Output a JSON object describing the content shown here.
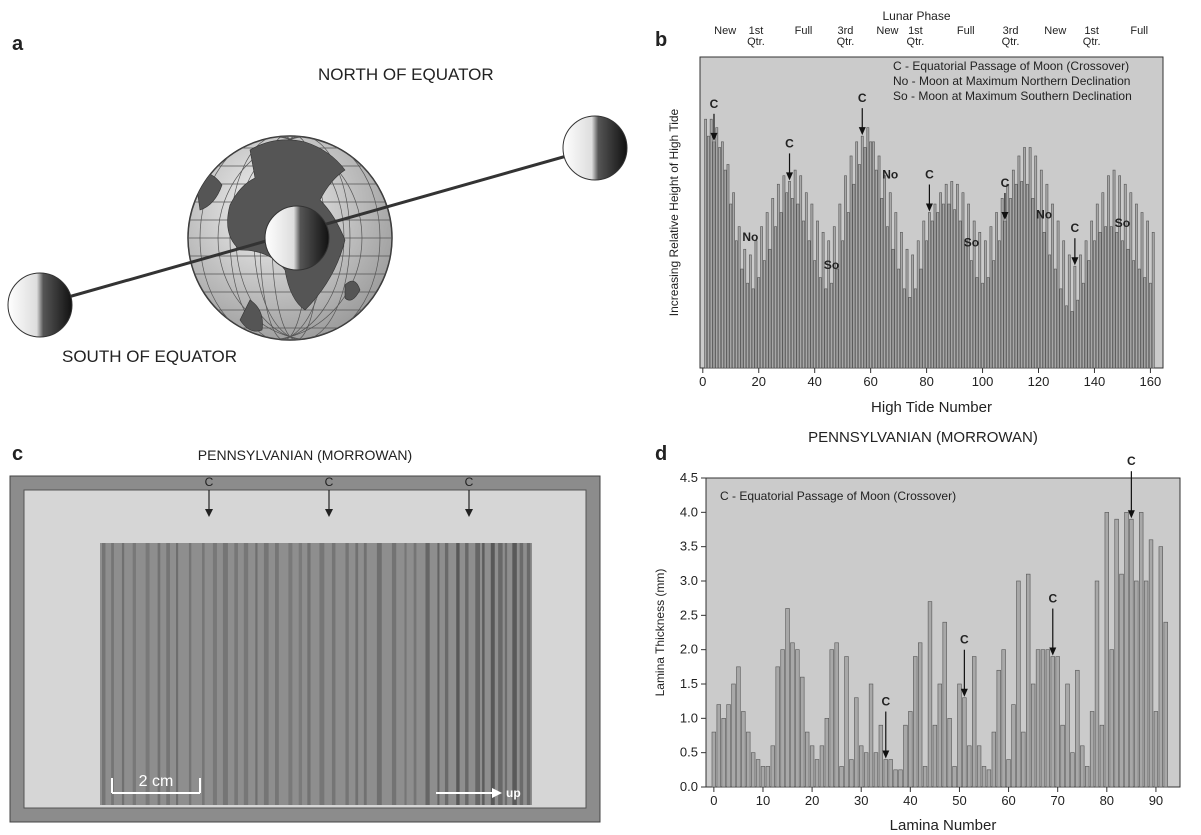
{
  "panels": {
    "a": {
      "label": "a",
      "north": "NORTH OF EQUATOR",
      "south": "SOUTH OF EQUATOR"
    },
    "c": {
      "label": "c",
      "title": "PENNSYLVANIAN (MORROWAN)",
      "markers": [
        "C",
        "C",
        "C"
      ],
      "scale_bar": "2 cm",
      "direction": "up"
    }
  },
  "chart_data": [
    {
      "type": "bar",
      "panel_label": "b",
      "top_axis_title": "Lunar Phase",
      "phases": [
        {
          "label": "New",
          "x": 8
        },
        {
          "label": "1st Qtr.",
          "x": 19
        },
        {
          "label": "Full",
          "x": 36
        },
        {
          "label": "3rd Qtr.",
          "x": 51
        },
        {
          "label": "New",
          "x": 66
        },
        {
          "label": "1st Qtr.",
          "x": 76
        },
        {
          "label": "Full",
          "x": 94
        },
        {
          "label": "3rd Qtr.",
          "x": 110
        },
        {
          "label": "New",
          "x": 126
        },
        {
          "label": "1st Qtr.",
          "x": 139
        },
        {
          "label": "Full",
          "x": 156
        }
      ],
      "notes": [
        "C - Equatorial Passage of Moon (Crossover)",
        "No - Moon at Maximum Northern Declination",
        "So - Moon at Maximum Southern Declination"
      ],
      "xlabel": "High Tide Number",
      "ylabel": "Increasing Relative Height of High Tide",
      "x": [
        1,
        2,
        3,
        4,
        5,
        6,
        7,
        8,
        9,
        10,
        11,
        12,
        13,
        14,
        15,
        16,
        17,
        18,
        19,
        20,
        21,
        22,
        23,
        24,
        25,
        26,
        27,
        28,
        29,
        30,
        31,
        32,
        33,
        34,
        35,
        36,
        37,
        38,
        39,
        40,
        41,
        42,
        43,
        44,
        45,
        46,
        47,
        48,
        49,
        50,
        51,
        52,
        53,
        54,
        55,
        56,
        57,
        58,
        59,
        60,
        61,
        62,
        63,
        64,
        65,
        66,
        67,
        68,
        69,
        70,
        71,
        72,
        73,
        74,
        75,
        76,
        77,
        78,
        79,
        80,
        81,
        82,
        83,
        84,
        85,
        86,
        87,
        88,
        89,
        90,
        91,
        92,
        93,
        94,
        95,
        96,
        97,
        98,
        99,
        100,
        101,
        102,
        103,
        104,
        105,
        106,
        107,
        108,
        109,
        110,
        111,
        112,
        113,
        114,
        115,
        116,
        117,
        118,
        119,
        120,
        121,
        122,
        123,
        124,
        125,
        126,
        127,
        128,
        129,
        130,
        131,
        132,
        133,
        134,
        135,
        136,
        137,
        138,
        139,
        140,
        141,
        142,
        143,
        144,
        145,
        146,
        147,
        148,
        149,
        150,
        151,
        152,
        153,
        154,
        155,
        156,
        157,
        158,
        159,
        160,
        161
      ],
      "values": [
        88,
        82,
        88,
        80,
        85,
        78,
        80,
        70,
        72,
        58,
        62,
        45,
        50,
        35,
        42,
        30,
        40,
        28,
        45,
        32,
        50,
        38,
        55,
        42,
        60,
        50,
        65,
        55,
        68,
        62,
        66,
        60,
        70,
        58,
        68,
        52,
        62,
        45,
        58,
        38,
        52,
        32,
        48,
        28,
        45,
        30,
        50,
        35,
        58,
        45,
        68,
        55,
        75,
        65,
        80,
        72,
        82,
        78,
        85,
        80,
        80,
        70,
        75,
        60,
        68,
        50,
        62,
        42,
        55,
        35,
        48,
        28,
        42,
        25,
        40,
        28,
        45,
        35,
        52,
        45,
        55,
        52,
        58,
        55,
        62,
        58,
        65,
        58,
        66,
        56,
        65,
        52,
        62,
        45,
        58,
        38,
        52,
        32,
        48,
        30,
        45,
        32,
        50,
        38,
        55,
        45,
        60,
        52,
        65,
        60,
        70,
        65,
        75,
        66,
        78,
        65,
        78,
        60,
        75,
        55,
        70,
        48,
        65,
        40,
        58,
        35,
        52,
        28,
        45,
        22,
        40,
        20,
        36,
        24,
        40,
        30,
        45,
        38,
        52,
        45,
        58,
        48,
        62,
        50,
        68,
        50,
        70,
        48,
        68,
        45,
        65,
        42,
        62,
        38,
        58,
        35,
        55,
        32,
        52,
        30,
        48
      ],
      "color": "#a8a8a8",
      "xlim": [
        -1,
        164.5
      ],
      "xticks": [
        0,
        20,
        40,
        60,
        80,
        100,
        120,
        140,
        160
      ],
      "ylim": [
        0,
        110
      ],
      "annotations": [
        {
          "label": "C",
          "x": 4,
          "arrow": true
        },
        {
          "label": "No",
          "x": 17,
          "arrow": false
        },
        {
          "label": "C",
          "x": 31,
          "arrow": true
        },
        {
          "label": "So",
          "x": 46,
          "arrow": false
        },
        {
          "label": "C",
          "x": 57,
          "arrow": true
        },
        {
          "label": "No",
          "x": 67,
          "arrow": false
        },
        {
          "label": "C",
          "x": 81,
          "arrow": true
        },
        {
          "label": "So",
          "x": 96,
          "arrow": false
        },
        {
          "label": "C",
          "x": 108,
          "arrow": true
        },
        {
          "label": "No",
          "x": 122,
          "arrow": false
        },
        {
          "label": "C",
          "x": 133,
          "arrow": true
        },
        {
          "label": "So",
          "x": 150,
          "arrow": false
        }
      ]
    },
    {
      "type": "bar",
      "panel_label": "d",
      "title": "PENNSYLVANIAN (MORROWAN)",
      "notes": [
        "C - Equatorial Passage of Moon (Crossover)"
      ],
      "xlabel": "Lamina Number",
      "ylabel": "Lamina Thickness (mm)",
      "x": [
        0,
        1,
        2,
        3,
        4,
        5,
        6,
        7,
        8,
        9,
        10,
        11,
        12,
        13,
        14,
        15,
        16,
        17,
        18,
        19,
        20,
        21,
        22,
        23,
        24,
        25,
        26,
        27,
        28,
        29,
        30,
        31,
        32,
        33,
        34,
        35,
        36,
        37,
        38,
        39,
        40,
        41,
        42,
        43,
        44,
        45,
        46,
        47,
        48,
        49,
        50,
        51,
        52,
        53,
        54,
        55,
        56,
        57,
        58,
        59,
        60,
        61,
        62,
        63,
        64,
        65,
        66,
        67,
        68,
        69,
        70,
        71,
        72,
        73,
        74,
        75,
        76,
        77,
        78,
        79,
        80,
        81,
        82,
        83,
        84,
        85,
        86,
        87,
        88,
        89,
        90,
        91,
        92
      ],
      "values": [
        0.8,
        1.2,
        1.0,
        1.2,
        1.5,
        1.75,
        1.1,
        0.8,
        0.5,
        0.4,
        0.3,
        0.3,
        0.6,
        1.75,
        2.0,
        2.6,
        2.1,
        2.0,
        1.6,
        0.8,
        0.6,
        0.4,
        0.6,
        1.0,
        2.0,
        2.1,
        0.3,
        1.9,
        0.4,
        1.3,
        0.6,
        0.5,
        1.5,
        0.5,
        0.9,
        0.4,
        0.4,
        0.25,
        0.25,
        0.9,
        1.1,
        1.9,
        2.1,
        0.3,
        2.7,
        0.9,
        1.5,
        2.4,
        1.0,
        0.3,
        1.5,
        1.3,
        0.6,
        1.9,
        0.6,
        0.3,
        0.25,
        0.8,
        1.7,
        2.0,
        0.4,
        1.2,
        3.0,
        0.8,
        3.1,
        1.5,
        2.0,
        2.0,
        2.0,
        1.9,
        1.9,
        0.9,
        1.5,
        0.5,
        1.7,
        0.6,
        0.3,
        1.1,
        3.0,
        0.9,
        4.0,
        2.0,
        3.9,
        3.1,
        4.0,
        3.9,
        3.0,
        4.0,
        3.0,
        3.6,
        1.1,
        3.5,
        2.4
      ],
      "color": "#a8a8a8",
      "xlim": [
        -1.6,
        94.9
      ],
      "xticks": [
        0,
        10,
        20,
        30,
        40,
        50,
        60,
        70,
        80,
        90
      ],
      "ylim": [
        0,
        4.5
      ],
      "yticks": [
        {
          "value": 0,
          "label": "0.0"
        },
        0.5,
        {
          "value": 1,
          "label": "1.0"
        },
        1.5,
        {
          "value": 2,
          "label": "2.0"
        },
        2.5,
        {
          "value": 3,
          "label": "3.0"
        },
        3.5,
        {
          "value": 4,
          "label": "4.0"
        },
        4.5
      ],
      "annotations": [
        {
          "label": "C",
          "x": 35,
          "arrow": true
        },
        {
          "label": "C",
          "x": 51,
          "arrow": true
        },
        {
          "label": "C",
          "x": 69,
          "arrow": true
        },
        {
          "label": "C",
          "x": 85,
          "arrow": true
        }
      ]
    }
  ]
}
